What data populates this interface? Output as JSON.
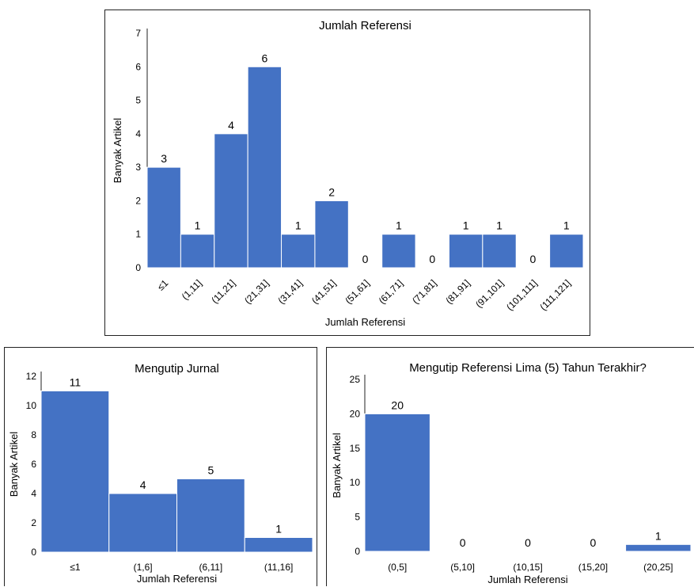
{
  "chart_data": [
    {
      "id": "top",
      "type": "bar",
      "title": "Jumlah Referensi",
      "xlabel": "Jumlah Referensi",
      "ylabel": "Banyak Artikel",
      "categories": [
        "≤1",
        "(1,11]",
        "(11,21]",
        "(21,31]",
        "(31,41]",
        "(41,51]",
        "(51,61]",
        "(61,71]",
        "(71,81]",
        "(81,91]",
        "(91,101]",
        "(101,111]",
        "(111,121]"
      ],
      "values": [
        3,
        1,
        4,
        6,
        1,
        2,
        0,
        1,
        0,
        1,
        1,
        0,
        1
      ],
      "yticks": [
        "0",
        "1",
        "2",
        "3",
        "4",
        "5",
        "6",
        "7"
      ],
      "ylim": [
        0,
        7
      ],
      "grid": false,
      "bar_color": "#4472C4"
    },
    {
      "id": "left",
      "type": "bar",
      "title": "Mengutip Jurnal",
      "xlabel": "Jumlah Referensi",
      "ylabel": "Banyak Artikel",
      "categories": [
        "≤1",
        "(1,6]",
        "(6,11]",
        "(11,16]"
      ],
      "values": [
        11,
        4,
        5,
        1
      ],
      "yticks": [
        "0",
        "2",
        "4",
        "6",
        "8",
        "10",
        "12"
      ],
      "ylim": [
        0,
        12
      ],
      "grid": false,
      "bar_color": "#4472C4"
    },
    {
      "id": "right",
      "type": "bar",
      "title": "Mengutip Referensi Lima (5) Tahun Terakhir?",
      "xlabel": "Jumlah Referensi",
      "ylabel": "Banyak Artikel",
      "categories": [
        "(0,5]",
        "(5,10]",
        "(10,15]",
        "(15,20]",
        "(20,25]"
      ],
      "values": [
        20,
        0,
        0,
        0,
        1
      ],
      "yticks": [
        "0",
        "5",
        "10",
        "15",
        "20",
        "25"
      ],
      "ylim": [
        0,
        25
      ],
      "grid": false,
      "bar_color": "#4472C4"
    }
  ]
}
